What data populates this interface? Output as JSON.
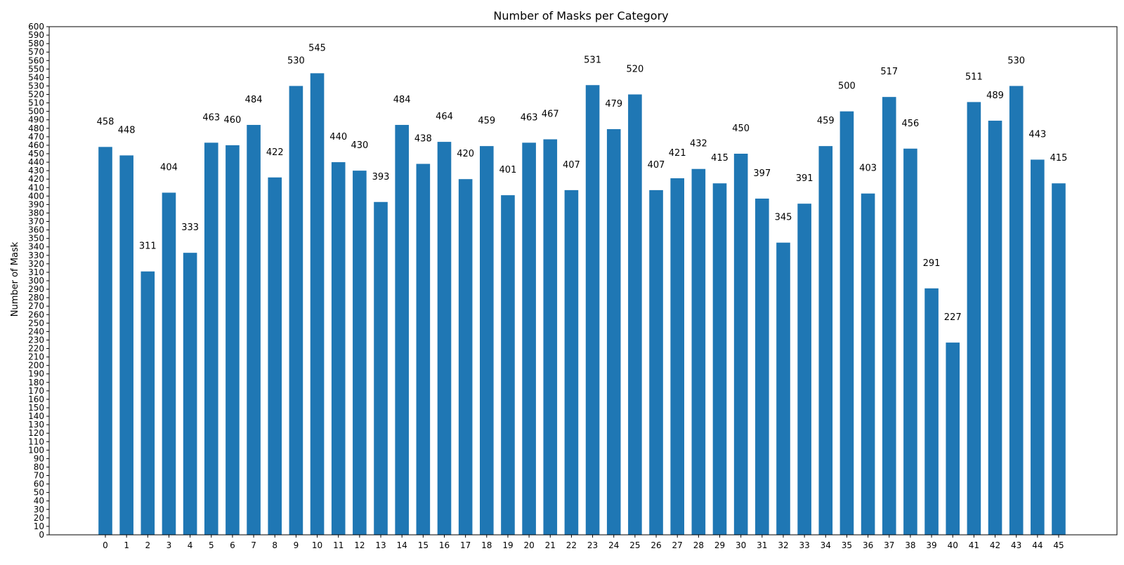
{
  "chart_data": {
    "type": "bar",
    "title": "Number of Masks per Category",
    "xlabel": "",
    "ylabel": "Number of Mask",
    "ylim": [
      0,
      600
    ],
    "ytick_step": 10,
    "grid": false,
    "legend": "none",
    "bar_color": "#1f77b4",
    "categories": [
      "0",
      "1",
      "2",
      "3",
      "4",
      "5",
      "6",
      "7",
      "8",
      "9",
      "10",
      "11",
      "12",
      "13",
      "14",
      "15",
      "16",
      "17",
      "18",
      "19",
      "20",
      "21",
      "22",
      "23",
      "24",
      "25",
      "26",
      "27",
      "28",
      "29",
      "30",
      "31",
      "32",
      "33",
      "34",
      "35",
      "36",
      "37",
      "38",
      "39",
      "40",
      "41",
      "42",
      "43",
      "44",
      "45"
    ],
    "values": [
      458,
      448,
      311,
      404,
      333,
      463,
      460,
      484,
      422,
      530,
      545,
      440,
      430,
      393,
      484,
      438,
      464,
      420,
      459,
      401,
      463,
      467,
      407,
      531,
      479,
      520,
      407,
      421,
      432,
      415,
      450,
      397,
      345,
      391,
      459,
      500,
      403,
      517,
      456,
      291,
      227,
      511,
      489,
      530,
      443,
      415
    ]
  }
}
